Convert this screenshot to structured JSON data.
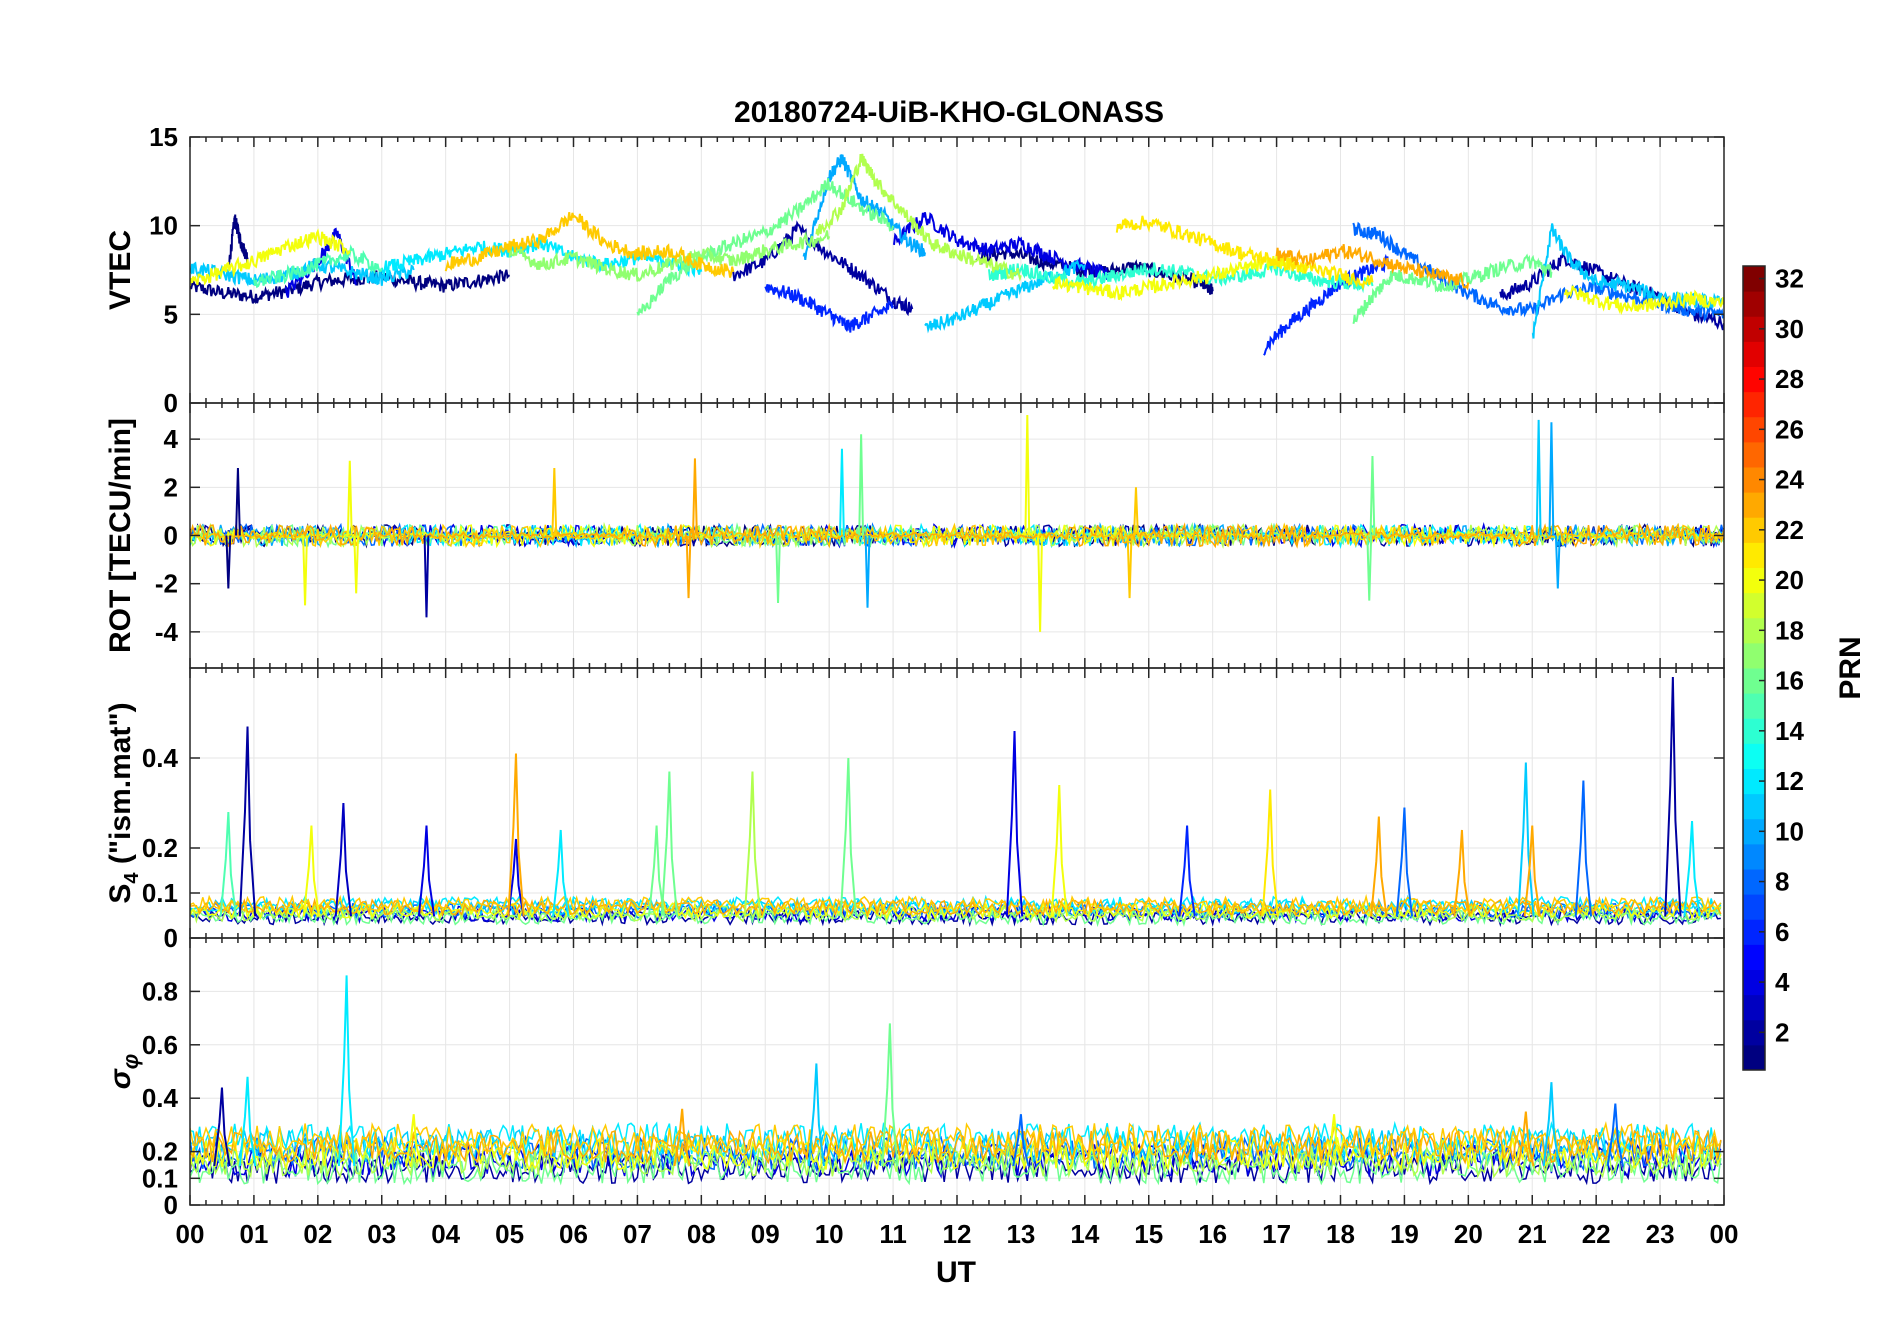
{
  "chart_data": {
    "type": "line",
    "title": "20180724-UiB-KHO-GLONASS",
    "xlabel": "UT",
    "x_ticks": [
      "00",
      "01",
      "02",
      "03",
      "04",
      "05",
      "06",
      "07",
      "08",
      "09",
      "10",
      "11",
      "12",
      "13",
      "14",
      "15",
      "16",
      "17",
      "18",
      "19",
      "20",
      "21",
      "22",
      "23",
      "00"
    ],
    "xlim_hours": [
      0,
      24
    ],
    "grid": true,
    "panels": [
      {
        "id": "vtec",
        "ylabel": "VTEC",
        "ylim": [
          0,
          15
        ],
        "yticks": [
          0,
          5,
          10,
          15
        ],
        "series": [
          {
            "prn": 1,
            "x": [
              0.0,
              0.5,
              1.0,
              1.5,
              2.0,
              2.5,
              3.0,
              3.5,
              4.0,
              4.5,
              5.0
            ],
            "y": [
              6.6,
              6.2,
              6.0,
              6.3,
              6.8,
              7.0,
              7.1,
              6.8,
              6.6,
              6.9,
              7.2
            ]
          },
          {
            "prn": 1,
            "x": [
              0.6,
              0.7,
              0.8,
              0.9
            ],
            "y": [
              7.5,
              10.4,
              9.0,
              8.2
            ]
          },
          {
            "prn": 1,
            "x": [
              12.3,
              12.8,
              13.3,
              13.8,
              14.3,
              14.8,
              15.3,
              15.8,
              16.0
            ],
            "y": [
              8.2,
              8.5,
              8.0,
              7.6,
              7.4,
              7.7,
              7.2,
              6.8,
              6.3
            ]
          },
          {
            "prn": 2,
            "x": [
              8.5,
              9.0,
              9.5,
              10.0,
              10.5,
              11.0,
              11.3
            ],
            "y": [
              7.2,
              8.0,
              9.8,
              8.4,
              7.2,
              5.8,
              5.3
            ]
          },
          {
            "prn": 2,
            "x": [
              20.5,
              21.0,
              21.5,
              22.0,
              22.5,
              23.0,
              23.5,
              24.0
            ],
            "y": [
              6.0,
              6.8,
              8.2,
              7.4,
              6.6,
              6.0,
              5.0,
              4.5
            ]
          },
          {
            "prn": 4,
            "x": [
              1.5,
              2.0,
              2.3,
              2.6
            ],
            "y": [
              6.2,
              8.0,
              9.6,
              6.8
            ]
          },
          {
            "prn": 4,
            "x": [
              11.0,
              11.5,
              12.0,
              12.5,
              13.0,
              13.5,
              14.0,
              14.4
            ],
            "y": [
              9.0,
              10.5,
              9.2,
              8.6,
              9.0,
              8.2,
              7.6,
              7.2
            ]
          },
          {
            "prn": 6,
            "x": [
              9.0,
              9.5,
              10.0,
              10.3,
              10.6,
              11.0
            ],
            "y": [
              6.6,
              6.0,
              5.0,
              4.3,
              4.8,
              5.5
            ]
          },
          {
            "prn": 6,
            "x": [
              16.8,
              17.2,
              17.6,
              18.0,
              18.4,
              18.8
            ],
            "y": [
              3.1,
              4.5,
              5.6,
              6.8,
              7.4,
              8.0
            ]
          },
          {
            "prn": 8,
            "x": [
              18.2,
              18.6,
              19.0,
              19.5,
              20.0,
              20.5,
              21.0,
              21.5,
              22.0,
              22.5,
              23.0,
              23.5,
              24.0
            ],
            "y": [
              9.8,
              9.5,
              8.4,
              7.2,
              6.2,
              5.4,
              5.2,
              6.2,
              6.5,
              6.0,
              5.6,
              5.2,
              5.0
            ]
          },
          {
            "prn": 10,
            "x": [
              9.6,
              10.0,
              10.2,
              10.5,
              10.8,
              11.2,
              11.5
            ],
            "y": [
              8.0,
              12.8,
              13.8,
              11.5,
              10.8,
              9.2,
              8.5
            ]
          },
          {
            "prn": 11,
            "x": [
              0.0,
              0.5,
              1.0,
              1.5,
              2.0,
              2.5,
              3.0,
              3.5
            ],
            "y": [
              7.6,
              7.3,
              6.9,
              7.2,
              7.8,
              7.4,
              7.0,
              7.5
            ]
          },
          {
            "prn": 11,
            "x": [
              11.5,
              12.0,
              12.5,
              13.0,
              13.5,
              14.0
            ],
            "y": [
              4.2,
              4.8,
              5.6,
              6.4,
              7.2,
              7.8
            ]
          },
          {
            "prn": 11,
            "x": [
              21.0,
              21.3,
              21.6,
              22.0,
              22.5,
              23.0,
              23.5,
              24.0
            ],
            "y": [
              3.6,
              9.8,
              8.0,
              6.8,
              6.6,
              6.0,
              5.8,
              5.6
            ]
          },
          {
            "prn": 12,
            "x": [
              3.0,
              3.5,
              4.0,
              4.5,
              5.0,
              5.5,
              6.0,
              6.5,
              7.0,
              7.5,
              8.0
            ],
            "y": [
              7.6,
              8.0,
              8.4,
              8.8,
              8.6,
              9.0,
              8.2,
              7.8,
              8.2,
              8.0,
              7.4
            ]
          },
          {
            "prn": 14,
            "x": [
              12.5,
              13.0,
              13.5,
              14.0,
              14.5,
              15.0,
              15.5,
              16.0,
              16.5,
              17.0,
              17.5,
              18.0,
              18.5
            ],
            "y": [
              7.2,
              7.6,
              7.0,
              6.8,
              7.2,
              7.6,
              7.4,
              7.0,
              7.2,
              7.6,
              7.0,
              6.8,
              6.6
            ]
          },
          {
            "prn": 15,
            "x": [
              1.0,
              1.5,
              2.0,
              2.5,
              3.0
            ],
            "y": [
              6.8,
              7.2,
              7.8,
              8.4,
              7.6
            ]
          },
          {
            "prn": 16,
            "x": [
              7.0,
              7.5,
              8.0,
              8.5,
              9.0,
              9.5,
              10.0,
              10.5,
              11.0
            ],
            "y": [
              4.8,
              7.0,
              8.2,
              9.0,
              9.6,
              10.8,
              12.4,
              11.0,
              10.0
            ]
          },
          {
            "prn": 16,
            "x": [
              18.2,
              18.5,
              18.8,
              19.2,
              19.6,
              20.0,
              20.5,
              21.0,
              21.3
            ],
            "y": [
              4.6,
              6.0,
              7.2,
              7.0,
              6.6,
              7.0,
              7.6,
              8.0,
              7.4
            ]
          },
          {
            "prn": 17,
            "x": [
              5.0,
              5.5,
              6.0,
              6.5,
              7.0,
              7.5,
              8.0,
              8.5,
              9.0,
              9.5,
              10.0
            ],
            "y": [
              8.6,
              7.8,
              8.2,
              7.6,
              7.2,
              7.8,
              8.4,
              8.0,
              8.6,
              9.0,
              9.4
            ]
          },
          {
            "prn": 18,
            "x": [
              9.8,
              10.2,
              10.5,
              10.8,
              11.2,
              11.6,
              12.0,
              12.5,
              13.0
            ],
            "y": [
              9.6,
              11.0,
              13.8,
              12.2,
              10.6,
              9.0,
              8.4,
              7.8,
              7.2
            ]
          },
          {
            "prn": 20,
            "x": [
              0.0,
              0.5,
              1.0,
              1.5,
              2.0,
              2.5
            ],
            "y": [
              6.8,
              7.4,
              8.0,
              8.8,
              9.4,
              8.6
            ]
          },
          {
            "prn": 20,
            "x": [
              13.5,
              14.0,
              14.5,
              15.0,
              15.5,
              16.0,
              16.5,
              17.0,
              17.5
            ],
            "y": [
              6.8,
              6.5,
              6.2,
              6.5,
              6.9,
              7.2,
              7.6,
              8.0,
              7.6
            ]
          },
          {
            "prn": 20,
            "x": [
              21.5,
              22.0,
              22.5,
              23.0,
              23.5,
              24.0
            ],
            "y": [
              6.4,
              5.8,
              5.4,
              5.6,
              5.9,
              5.6
            ]
          },
          {
            "prn": 21,
            "x": [
              14.5,
              15.0,
              15.5,
              16.0,
              16.5,
              17.0,
              17.5,
              18.0,
              18.5
            ],
            "y": [
              10.0,
              10.2,
              9.6,
              9.0,
              8.4,
              8.0,
              7.6,
              7.2,
              6.8
            ]
          },
          {
            "prn": 22,
            "x": [
              4.0,
              4.5,
              5.0,
              5.5,
              6.0,
              6.5,
              7.0,
              7.5,
              8.0,
              8.5
            ],
            "y": [
              7.8,
              8.2,
              8.8,
              9.2,
              10.6,
              9.0,
              8.4,
              8.6,
              7.8,
              7.4
            ]
          },
          {
            "prn": 23,
            "x": [
              17.0,
              17.5,
              18.0,
              18.5,
              19.0,
              19.5,
              20.0
            ],
            "y": [
              8.4,
              8.0,
              8.6,
              8.2,
              7.6,
              7.2,
              6.8
            ]
          }
        ]
      },
      {
        "id": "rot",
        "ylabel": "ROT [TECU/min]",
        "ylim": [
          -5.5,
          5.5
        ],
        "yticks": [
          -4,
          -2,
          0,
          2,
          4
        ],
        "note": "dense fluctuating traces around 0; spike extremes listed",
        "spikes": [
          {
            "x": 0.75,
            "y": 2.8,
            "prn": 1
          },
          {
            "x": 0.6,
            "y": -2.2,
            "prn": 1
          },
          {
            "x": 1.8,
            "y": -2.9,
            "prn": 20
          },
          {
            "x": 2.5,
            "y": 3.1,
            "prn": 20
          },
          {
            "x": 2.6,
            "y": -2.4,
            "prn": 20
          },
          {
            "x": 3.7,
            "y": -3.4,
            "prn": 2
          },
          {
            "x": 5.7,
            "y": 2.8,
            "prn": 22
          },
          {
            "x": 7.9,
            "y": 3.2,
            "prn": 23
          },
          {
            "x": 7.8,
            "y": -2.6,
            "prn": 23
          },
          {
            "x": 9.2,
            "y": -2.8,
            "prn": 16
          },
          {
            "x": 10.5,
            "y": 4.2,
            "prn": 16
          },
          {
            "x": 10.2,
            "y": 3.6,
            "prn": 12
          },
          {
            "x": 10.6,
            "y": -3.0,
            "prn": 10
          },
          {
            "x": 13.1,
            "y": 5.0,
            "prn": 20
          },
          {
            "x": 13.3,
            "y": -4.0,
            "prn": 20
          },
          {
            "x": 14.7,
            "y": -2.6,
            "prn": 22
          },
          {
            "x": 14.8,
            "y": 2.0,
            "prn": 22
          },
          {
            "x": 18.5,
            "y": 3.3,
            "prn": 16
          },
          {
            "x": 18.45,
            "y": -2.7,
            "prn": 16
          },
          {
            "x": 21.1,
            "y": 4.8,
            "prn": 11
          },
          {
            "x": 21.3,
            "y": 4.7,
            "prn": 10
          },
          {
            "x": 21.4,
            "y": -2.2,
            "prn": 10
          }
        ]
      },
      {
        "id": "s4",
        "ylabel": "S4 (\"ism.mat\")",
        "ylim": [
          0,
          0.6
        ],
        "yticks": [
          0,
          0.1,
          0.2,
          0.4
        ],
        "baseline_range": [
          0.03,
          0.09
        ],
        "peaks": [
          {
            "x": 0.9,
            "y": 0.47,
            "prn": 2
          },
          {
            "x": 0.6,
            "y": 0.28,
            "prn": 15
          },
          {
            "x": 1.9,
            "y": 0.25,
            "prn": 20
          },
          {
            "x": 2.4,
            "y": 0.3,
            "prn": 3
          },
          {
            "x": 3.7,
            "y": 0.25,
            "prn": 4
          },
          {
            "x": 5.1,
            "y": 0.22,
            "prn": 4
          },
          {
            "x": 5.1,
            "y": 0.41,
            "prn": 23
          },
          {
            "x": 5.8,
            "y": 0.24,
            "prn": 12
          },
          {
            "x": 7.3,
            "y": 0.25,
            "prn": 16
          },
          {
            "x": 7.5,
            "y": 0.37,
            "prn": 16
          },
          {
            "x": 8.8,
            "y": 0.37,
            "prn": 18
          },
          {
            "x": 10.3,
            "y": 0.4,
            "prn": 16
          },
          {
            "x": 12.9,
            "y": 0.46,
            "prn": 4
          },
          {
            "x": 13.6,
            "y": 0.34,
            "prn": 20
          },
          {
            "x": 15.6,
            "y": 0.25,
            "prn": 6
          },
          {
            "x": 16.9,
            "y": 0.33,
            "prn": 21
          },
          {
            "x": 18.6,
            "y": 0.27,
            "prn": 23
          },
          {
            "x": 19.0,
            "y": 0.29,
            "prn": 8
          },
          {
            "x": 19.9,
            "y": 0.24,
            "prn": 23
          },
          {
            "x": 20.9,
            "y": 0.39,
            "prn": 11
          },
          {
            "x": 21.0,
            "y": 0.25,
            "prn": 23
          },
          {
            "x": 21.8,
            "y": 0.35,
            "prn": 8
          },
          {
            "x": 23.2,
            "y": 0.58,
            "prn": 2
          },
          {
            "x": 23.5,
            "y": 0.26,
            "prn": 12
          }
        ]
      },
      {
        "id": "sigma",
        "ylabel": "σφ",
        "ylim": [
          0,
          1.0
        ],
        "yticks": [
          0,
          0.1,
          0.2,
          0.4,
          0.6,
          0.8
        ],
        "baseline_range": [
          0.08,
          0.3
        ],
        "peaks": [
          {
            "x": 0.5,
            "y": 0.44,
            "prn": 2
          },
          {
            "x": 0.9,
            "y": 0.48,
            "prn": 12
          },
          {
            "x": 2.45,
            "y": 0.86,
            "prn": 12
          },
          {
            "x": 3.5,
            "y": 0.34,
            "prn": 20
          },
          {
            "x": 7.7,
            "y": 0.36,
            "prn": 23
          },
          {
            "x": 9.8,
            "y": 0.53,
            "prn": 11
          },
          {
            "x": 10.95,
            "y": 0.68,
            "prn": 16
          },
          {
            "x": 13.0,
            "y": 0.34,
            "prn": 8
          },
          {
            "x": 17.9,
            "y": 0.34,
            "prn": 20
          },
          {
            "x": 20.9,
            "y": 0.35,
            "prn": 23
          },
          {
            "x": 21.3,
            "y": 0.46,
            "prn": 11
          },
          {
            "x": 22.3,
            "y": 0.38,
            "prn": 8
          }
        ]
      }
    ],
    "colorbar": {
      "label": "PRN",
      "range": [
        1,
        32
      ],
      "ticks": [
        2,
        4,
        6,
        8,
        10,
        12,
        14,
        16,
        18,
        20,
        22,
        24,
        26,
        28,
        30,
        32
      ],
      "colormap": "jet"
    }
  }
}
